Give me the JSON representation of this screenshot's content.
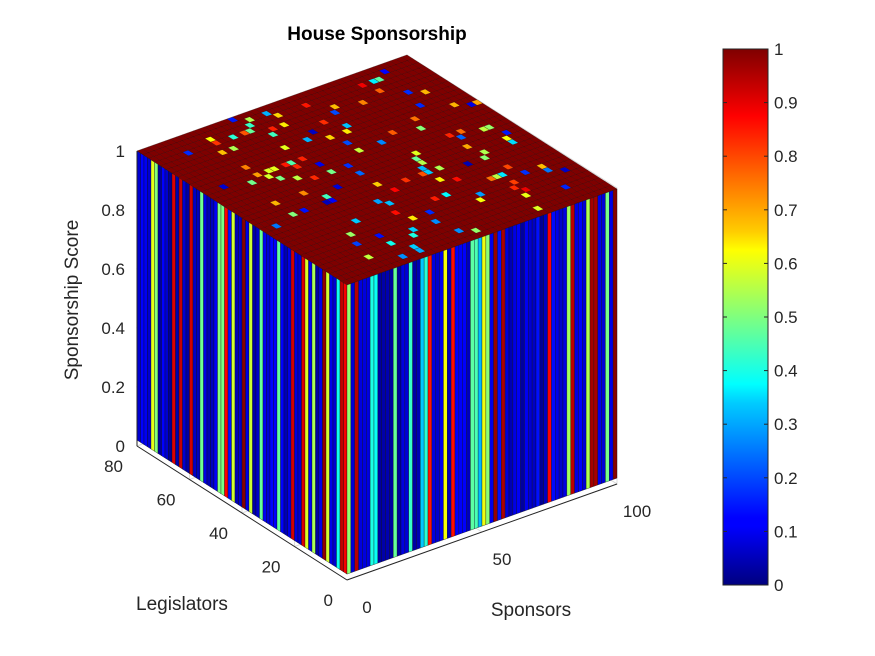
{
  "chart_data": {
    "type": "surface3d",
    "title": "House Sponsorship",
    "xlabel": "Sponsors",
    "ylabel": "Legislators",
    "zlabel": "Sponsorship Score",
    "xlim": [
      0,
      100
    ],
    "ylim": [
      0,
      80
    ],
    "zlim": [
      0,
      1
    ],
    "xticks": [
      "0",
      "50",
      "100"
    ],
    "yticks": [
      "0",
      "20",
      "40",
      "60",
      "80"
    ],
    "zticks": [
      "0",
      "0.2",
      "0.4",
      "0.6",
      "0.8",
      "1"
    ],
    "grid": true,
    "colormap": "jet",
    "colorbar": {
      "range": [
        0,
        1
      ],
      "ticks": [
        "0",
        "0.1",
        "0.2",
        "0.3",
        "0.4",
        "0.5",
        "0.6",
        "0.7",
        "0.8",
        "0.9",
        "1"
      ],
      "placement": "right"
    },
    "surface": {
      "rows": 72,
      "cols": 95,
      "dominant_value": 1,
      "note_values_between_0_and_1": true
    }
  },
  "colors": {
    "grid": "#dcdcdc",
    "axis": "#262626",
    "top_surface": "#7f0000"
  }
}
